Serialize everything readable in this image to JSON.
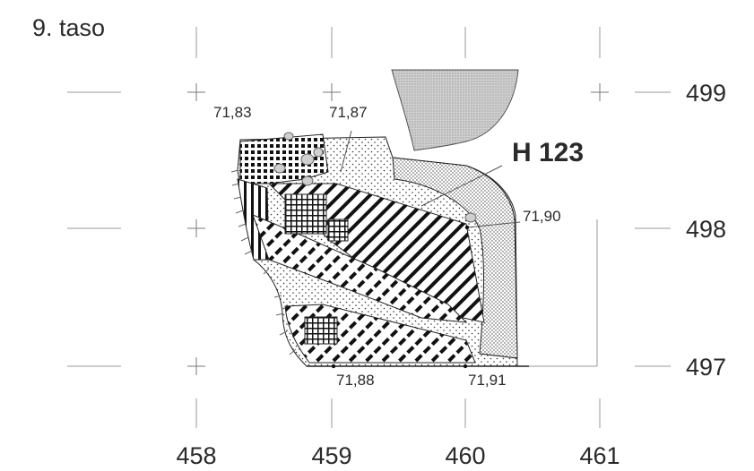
{
  "title": "9. taso",
  "feature_label": "H 123",
  "x_axis": {
    "ticks": [
      "458",
      "459",
      "460",
      "461"
    ]
  },
  "y_axis": {
    "ticks": [
      "499",
      "498",
      "497"
    ]
  },
  "elevations": [
    {
      "id": "e1",
      "label": "71,83"
    },
    {
      "id": "e2",
      "label": "71,87"
    },
    {
      "id": "e3",
      "label": "71,90"
    },
    {
      "id": "e4",
      "label": "71,88"
    },
    {
      "id": "e5",
      "label": "71,91"
    }
  ],
  "colors": {
    "line": "#222222",
    "grid": "#9a9a9a",
    "stone_fill": "#cfcfcf",
    "text": "#2a2a2a"
  }
}
